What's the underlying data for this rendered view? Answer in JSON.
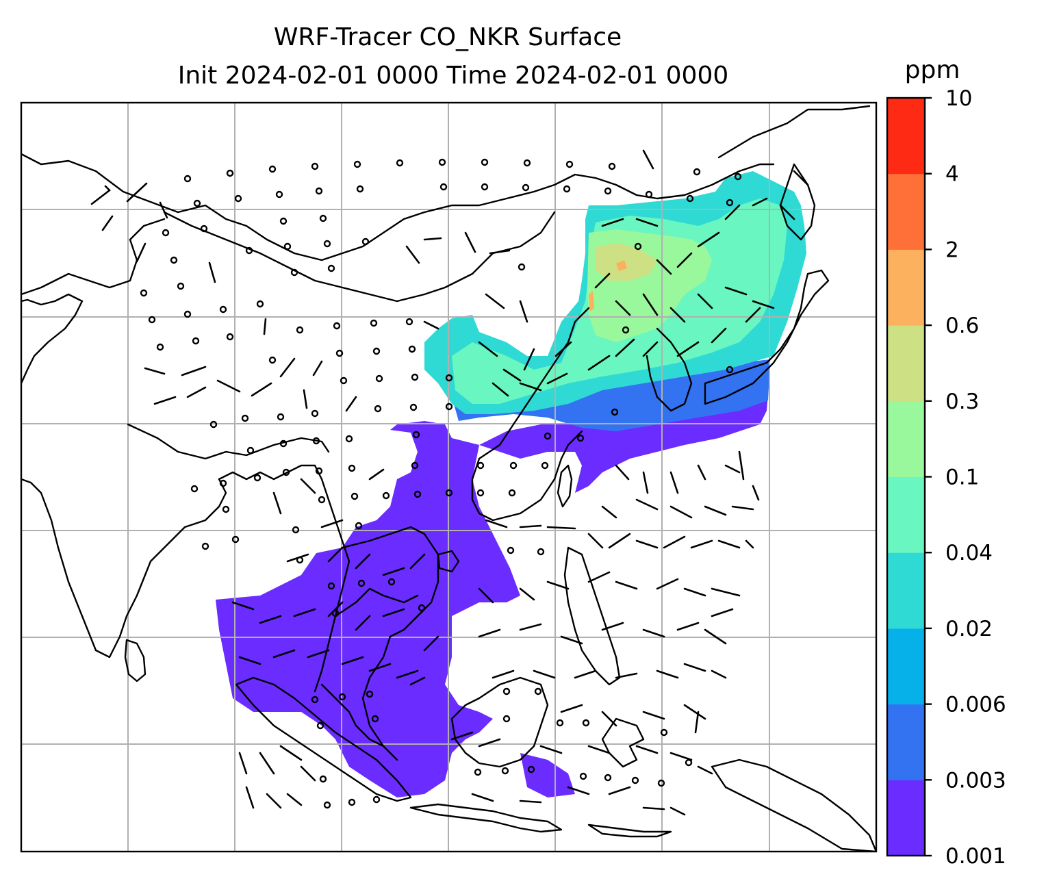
{
  "title": {
    "line1": "WRF-Tracer CO_NKR Surface",
    "line2": "Init 2024-02-01 0000 Time 2024-02-01 0000"
  },
  "colorbar": {
    "unit": "ppm",
    "ticks": [
      "0.001",
      "0.003",
      "0.006",
      "0.02",
      "0.04",
      "0.1",
      "0.3",
      "0.6",
      "2",
      "4",
      "10"
    ],
    "colors": [
      "#6a2cff",
      "#3373f2",
      "#06b0e8",
      "#2fdad4",
      "#6af6c0",
      "#9af89c",
      "#cde084",
      "#fbb15e",
      "#ff7038",
      "#ff2a14"
    ]
  },
  "map": {
    "projection": "PlateCarree",
    "extent_lon": [
      60,
      140
    ],
    "extent_lat": [
      -15,
      55
    ],
    "gridlines": true,
    "barbs": "wind barbs (knots), calm circles"
  }
}
